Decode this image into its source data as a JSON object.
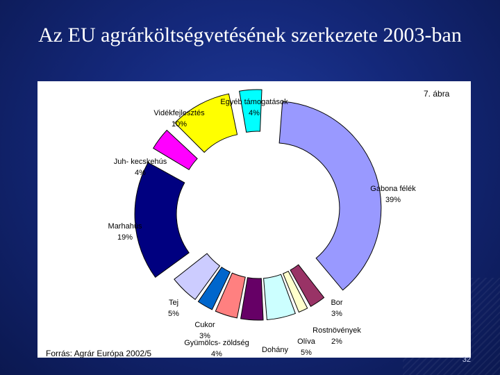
{
  "slide": {
    "title": "Az EU agrárköltségvetésének szerkezete 2003-ban",
    "page_number": "32"
  },
  "chart_data": {
    "type": "pie",
    "donut": true,
    "figure_label": "7. ábra",
    "source": "Forrás: Agrár Európa 2002/5",
    "series": [
      {
        "name": "Gabona félék",
        "value": 39,
        "label": "39%",
        "color": "#9999ff"
      },
      {
        "name": "Bor",
        "value": 3,
        "label": "3%",
        "color": "#993366"
      },
      {
        "name": "Rostnövények",
        "value": 2,
        "label": "2%",
        "color": "#ffffcc"
      },
      {
        "name": "Olíva",
        "value": 5,
        "label": "5%",
        "color": "#ccffff"
      },
      {
        "name": "Dohány",
        "value": 4,
        "label": "4%",
        "color": "#660066"
      },
      {
        "name": "Gyümölcs- zöldség",
        "value": 4,
        "label": "4%",
        "color": "#ff8080"
      },
      {
        "name": "Cukor",
        "value": 3,
        "label": "3%",
        "color": "#0066cc"
      },
      {
        "name": "Tej",
        "value": 5,
        "label": "5%",
        "color": "#ccccff"
      },
      {
        "name": "Marhahús",
        "value": 19,
        "label": "19%",
        "color": "#000080"
      },
      {
        "name": "Juh- kecskehús",
        "value": 4,
        "label": "4%",
        "color": "#ff00ff"
      },
      {
        "name": "Vidékfejlesztés",
        "value": 10,
        "label": "10%",
        "color": "#ffff00"
      },
      {
        "name": "Egyéb támogatások",
        "value": 4,
        "label": "4%",
        "color": "#00ffff"
      }
    ]
  }
}
